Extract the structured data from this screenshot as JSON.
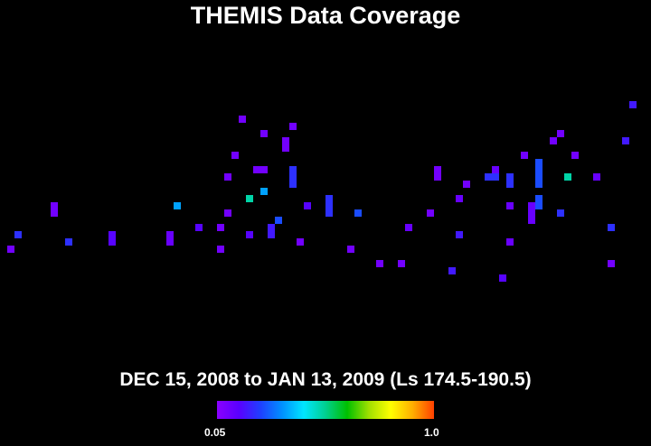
{
  "chart_data": {
    "type": "heatmap",
    "title": "THEMIS Data Coverage",
    "subtitle": "DEC 15, 2008 to JAN 13, 2009 (Ls 174.5-190.5)",
    "colorbar": {
      "min_label": "0.05",
      "max_label": "1.0",
      "min": 0.05,
      "max": 1.0
    },
    "cells": [
      {
        "col": 1,
        "row": 34,
        "v": 0.12
      },
      {
        "col": 2,
        "row": 32,
        "v": 0.3
      },
      {
        "col": 7,
        "row": 28,
        "v": 0.12
      },
      {
        "col": 7,
        "row": 29,
        "v": 0.12
      },
      {
        "col": 9,
        "row": 33,
        "v": 0.3
      },
      {
        "col": 15,
        "row": 32,
        "v": 0.2
      },
      {
        "col": 15,
        "row": 33,
        "v": 0.2
      },
      {
        "col": 23,
        "row": 32,
        "v": 0.15
      },
      {
        "col": 23,
        "row": 33,
        "v": 0.15
      },
      {
        "col": 24,
        "row": 28,
        "v": 0.45
      },
      {
        "col": 27,
        "row": 31,
        "v": 0.2
      },
      {
        "col": 30,
        "row": 31,
        "v": 0.12
      },
      {
        "col": 30,
        "row": 34,
        "v": 0.12
      },
      {
        "col": 31,
        "row": 24,
        "v": 0.12
      },
      {
        "col": 31,
        "row": 29,
        "v": 0.12
      },
      {
        "col": 32,
        "row": 21,
        "v": 0.12
      },
      {
        "col": 33,
        "row": 16,
        "v": 0.12
      },
      {
        "col": 34,
        "row": 27,
        "v": 0.6
      },
      {
        "col": 34,
        "row": 32,
        "v": 0.2
      },
      {
        "col": 35,
        "row": 23,
        "v": 0.12
      },
      {
        "col": 36,
        "row": 18,
        "v": 0.12
      },
      {
        "col": 36,
        "row": 23,
        "v": 0.12
      },
      {
        "col": 36,
        "row": 26,
        "v": 0.45
      },
      {
        "col": 37,
        "row": 31,
        "v": 0.25
      },
      {
        "col": 37,
        "row": 32,
        "v": 0.25
      },
      {
        "col": 38,
        "row": 30,
        "v": 0.35
      },
      {
        "col": 39,
        "row": 19,
        "v": 0.12
      },
      {
        "col": 39,
        "row": 20,
        "v": 0.12
      },
      {
        "col": 40,
        "row": 17,
        "v": 0.12
      },
      {
        "col": 40,
        "row": 23,
        "v": 0.3
      },
      {
        "col": 40,
        "row": 24,
        "v": 0.3
      },
      {
        "col": 40,
        "row": 25,
        "v": 0.3
      },
      {
        "col": 41,
        "row": 33,
        "v": 0.12
      },
      {
        "col": 42,
        "row": 28,
        "v": 0.2
      },
      {
        "col": 45,
        "row": 27,
        "v": 0.3
      },
      {
        "col": 45,
        "row": 28,
        "v": 0.3
      },
      {
        "col": 45,
        "row": 29,
        "v": 0.3
      },
      {
        "col": 48,
        "row": 34,
        "v": 0.12
      },
      {
        "col": 49,
        "row": 29,
        "v": 0.35
      },
      {
        "col": 52,
        "row": 36,
        "v": 0.12
      },
      {
        "col": 55,
        "row": 36,
        "v": 0.12
      },
      {
        "col": 56,
        "row": 31,
        "v": 0.15
      },
      {
        "col": 59,
        "row": 29,
        "v": 0.12
      },
      {
        "col": 60,
        "row": 23,
        "v": 0.12
      },
      {
        "col": 60,
        "row": 24,
        "v": 0.12
      },
      {
        "col": 62,
        "row": 37,
        "v": 0.25
      },
      {
        "col": 63,
        "row": 27,
        "v": 0.15
      },
      {
        "col": 63,
        "row": 32,
        "v": 0.25
      },
      {
        "col": 64,
        "row": 25,
        "v": 0.12
      },
      {
        "col": 67,
        "row": 24,
        "v": 0.3
      },
      {
        "col": 68,
        "row": 23,
        "v": 0.15
      },
      {
        "col": 68,
        "row": 24,
        "v": 0.3
      },
      {
        "col": 69,
        "row": 38,
        "v": 0.2
      },
      {
        "col": 70,
        "row": 24,
        "v": 0.3
      },
      {
        "col": 70,
        "row": 25,
        "v": 0.3
      },
      {
        "col": 70,
        "row": 28,
        "v": 0.15
      },
      {
        "col": 70,
        "row": 33,
        "v": 0.15
      },
      {
        "col": 72,
        "row": 21,
        "v": 0.12
      },
      {
        "col": 73,
        "row": 28,
        "v": 0.15
      },
      {
        "col": 73,
        "row": 29,
        "v": 0.15
      },
      {
        "col": 73,
        "row": 30,
        "v": 0.15
      },
      {
        "col": 74,
        "row": 22,
        "v": 0.35
      },
      {
        "col": 74,
        "row": 23,
        "v": 0.35
      },
      {
        "col": 74,
        "row": 24,
        "v": 0.35
      },
      {
        "col": 74,
        "row": 25,
        "v": 0.35
      },
      {
        "col": 74,
        "row": 27,
        "v": 0.35
      },
      {
        "col": 74,
        "row": 28,
        "v": 0.35
      },
      {
        "col": 76,
        "row": 19,
        "v": 0.12
      },
      {
        "col": 77,
        "row": 18,
        "v": 0.12
      },
      {
        "col": 77,
        "row": 29,
        "v": 0.3
      },
      {
        "col": 78,
        "row": 24,
        "v": 0.6
      },
      {
        "col": 79,
        "row": 21,
        "v": 0.12
      },
      {
        "col": 82,
        "row": 24,
        "v": 0.15
      },
      {
        "col": 84,
        "row": 31,
        "v": 0.3
      },
      {
        "col": 84,
        "row": 36,
        "v": 0.12
      },
      {
        "col": 86,
        "row": 19,
        "v": 0.25
      },
      {
        "col": 87,
        "row": 14,
        "v": 0.25
      }
    ]
  }
}
